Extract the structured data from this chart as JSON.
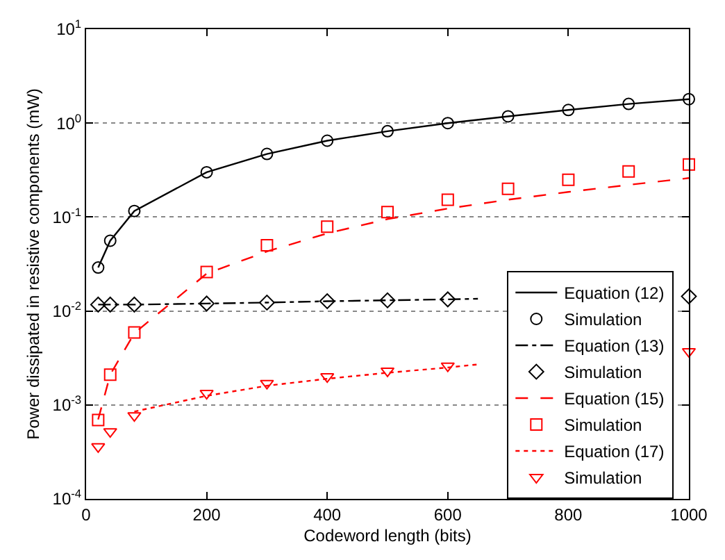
{
  "chart_data": {
    "type": "line",
    "xlabel": "Codeword length (bits)",
    "ylabel": "Power dissipated in resistive components (mW)",
    "log": "y",
    "grid": "y",
    "legend": "bottom right",
    "xlim": [
      0,
      1000
    ],
    "xticks": [
      0,
      200,
      400,
      600,
      800,
      1000
    ],
    "ylim": [
      0.0001,
      10
    ],
    "yticks": [
      {
        "value": 0.0001,
        "label": "10$^{-4}$"
      },
      {
        "value": 0.001,
        "label": "10$^{-3}$"
      },
      {
        "value": 0.01,
        "label": "10$^{-2}$"
      },
      {
        "value": 0.1,
        "label": "10$^{-1}$"
      },
      {
        "value": 1,
        "label": "10$^{0}$"
      },
      {
        "value": 10,
        "label": "10$^{1}$"
      }
    ],
    "series": [
      {
        "name": "Equation (12)",
        "color": "#000000",
        "line_style": "solid",
        "marker": "none",
        "x": [
          20,
          40,
          80,
          200,
          300,
          400,
          500,
          600,
          700,
          800,
          900,
          1000
        ],
        "values": [
          0.029,
          0.056,
          0.116,
          0.3,
          0.47,
          0.65,
          0.82,
          1.0,
          1.18,
          1.38,
          1.6,
          1.8
        ]
      },
      {
        "name": "Simulation",
        "type": "scatter",
        "color": "#000000",
        "marker": "circle",
        "x": [
          20,
          40,
          80,
          200,
          300,
          400,
          500,
          600,
          700,
          800,
          900,
          1000
        ],
        "values": [
          0.029,
          0.056,
          0.116,
          0.3,
          0.47,
          0.65,
          0.82,
          1.0,
          1.18,
          1.38,
          1.6,
          1.8
        ]
      },
      {
        "name": "Equation (13)",
        "color": "#000000",
        "line_style": "dashdot",
        "marker": "none",
        "x": [
          20,
          40,
          80,
          200,
          300,
          400,
          500,
          600,
          650
        ],
        "values": [
          0.0117,
          0.0117,
          0.0117,
          0.012,
          0.0123,
          0.0127,
          0.013,
          0.0133,
          0.0135
        ]
      },
      {
        "name": "Simulation",
        "type": "scatter",
        "color": "#000000",
        "marker": "diamond",
        "x": [
          20,
          40,
          80,
          200,
          300,
          400,
          500,
          600,
          1000
        ],
        "values": [
          0.0117,
          0.0117,
          0.0117,
          0.012,
          0.0123,
          0.0127,
          0.013,
          0.0133,
          0.0143
        ]
      },
      {
        "name": "Equation (15)",
        "color": "#ff0000",
        "line_style": "dashed",
        "marker": "none",
        "x": [
          20,
          40,
          80,
          200,
          300,
          400,
          500,
          600,
          700,
          800,
          900,
          1000
        ],
        "values": [
          0.0007,
          0.0021,
          0.0058,
          0.025,
          0.043,
          0.067,
          0.095,
          0.123,
          0.153,
          0.185,
          0.22,
          0.26
        ]
      },
      {
        "name": "Simulation",
        "type": "scatter",
        "color": "#ff0000",
        "marker": "square",
        "x": [
          20,
          40,
          80,
          200,
          300,
          400,
          500,
          600,
          700,
          800,
          900,
          1000
        ],
        "values": [
          0.00069,
          0.0021,
          0.0059,
          0.026,
          0.05,
          0.079,
          0.113,
          0.153,
          0.2,
          0.249,
          0.306,
          0.363
        ]
      },
      {
        "name": "Equation (17)",
        "color": "#ff0000",
        "line_style": "dotted",
        "marker": "none",
        "x": [
          80,
          200,
          300,
          400,
          500,
          600,
          650
        ],
        "values": [
          0.00085,
          0.00125,
          0.0016,
          0.0019,
          0.0022,
          0.0025,
          0.0027
        ]
      },
      {
        "name": "Simulation",
        "type": "scatter",
        "color": "#ff0000",
        "marker": "triangle-down",
        "x": [
          20,
          40,
          80,
          200,
          300,
          400,
          500,
          600,
          1000
        ],
        "values": [
          0.00036,
          0.00052,
          0.00077,
          0.00133,
          0.0017,
          0.002,
          0.0023,
          0.0026,
          0.0037
        ]
      }
    ]
  }
}
